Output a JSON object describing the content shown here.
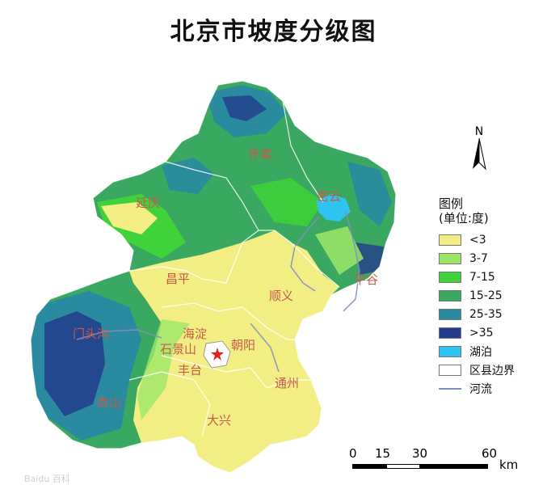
{
  "title": "北京市坡度分级图",
  "north_label": "N",
  "legend": {
    "title_line1": "图例",
    "title_line2": "(单位:度)",
    "items": [
      {
        "label": "<3",
        "color": "#f2ee84",
        "kind": "fill"
      },
      {
        "label": "3-7",
        "color": "#9ee66a",
        "kind": "fill"
      },
      {
        "label": "7-15",
        "color": "#3fd23a",
        "kind": "fill"
      },
      {
        "label": "15-25",
        "color": "#3aa860",
        "kind": "fill"
      },
      {
        "label": "25-35",
        "color": "#2a8aa0",
        "kind": "fill"
      },
      {
        "label": ">35",
        "color": "#233c8c",
        "kind": "fill"
      },
      {
        "label": "湖泊",
        "color": "#2ec3f0",
        "kind": "fill"
      },
      {
        "label": "区县边界",
        "color": "#ffffff",
        "kind": "outline"
      },
      {
        "label": "河流",
        "color": "#7f8fc0",
        "kind": "line"
      }
    ]
  },
  "places": {
    "huairou": "怀柔",
    "yanqing": "延庆",
    "miyun": "密云",
    "pinggu": "平谷",
    "changping": "昌平",
    "shunyi": "顺义",
    "mentougou": "门头沟",
    "haidian": "海淀",
    "shijingshan": "石景山",
    "chaoyang": "朝阳",
    "fengtai": "丰台",
    "tongzhou": "通州",
    "fangshan": "房山",
    "daxing": "大兴"
  },
  "scale_bar": {
    "ticks": [
      "0",
      "15",
      "30",
      "60"
    ],
    "unit": "km"
  },
  "watermark": "Baidu 百科"
}
